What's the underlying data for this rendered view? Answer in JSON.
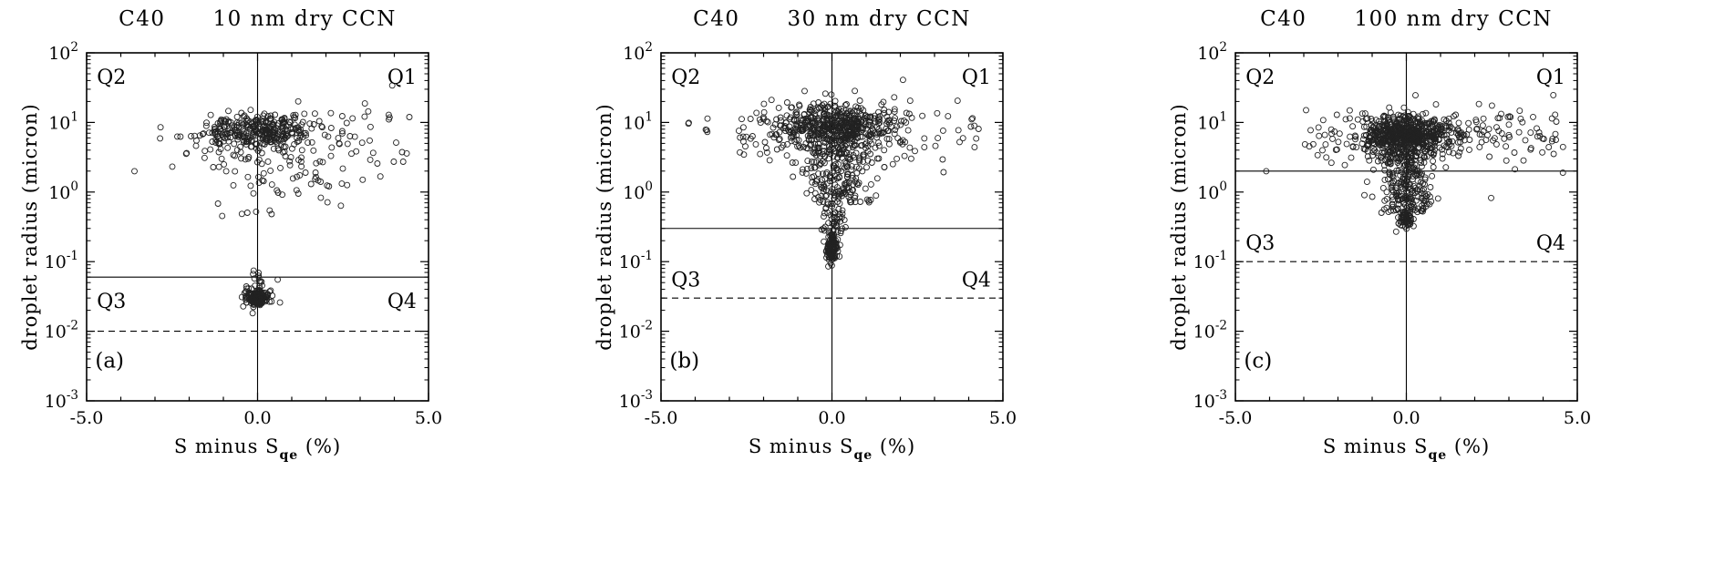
{
  "figure": {
    "panels": [
      {
        "title_prefix": "C40",
        "title_main": "10 nm dry CCN",
        "ylabel": "droplet radius (micron)",
        "xlabel_pre": "S minus S",
        "xlabel_sub": "qe",
        "xlabel_post": " (%)"
      },
      {
        "title_prefix": "C40",
        "title_main": "30 nm dry CCN",
        "ylabel": "droplet radius (micron)",
        "xlabel_pre": "S minus S",
        "xlabel_sub": "qe",
        "xlabel_post": " (%)"
      },
      {
        "title_prefix": "C40",
        "title_main": "100 nm dry CCN",
        "ylabel": "droplet radius (micron)",
        "xlabel_pre": "S minus S",
        "xlabel_sub": "qe",
        "xlabel_post": " (%)"
      }
    ]
  },
  "chart_data": [
    {
      "type": "scatter",
      "title": "C40 10 nm dry CCN",
      "xlabel": "S minus S_qe (%)",
      "ylabel": "droplet radius (micron)",
      "xlim": [
        -5,
        5
      ],
      "ylog_lim": [
        -3,
        2
      ],
      "x_major_ticks": [
        -5,
        0,
        5
      ],
      "x_tick_labels": [
        "-5.0",
        "0.0",
        "5.0"
      ],
      "y_decades": [
        2,
        1,
        0,
        -1,
        -2,
        -3
      ],
      "grid": false,
      "marker": "open-circle",
      "marker_color": "#222222",
      "vline_x": 0,
      "hline_solid_y": 0.06,
      "hline_dashed_y": 0.01,
      "quadrant_labels": [
        {
          "text": "Q2",
          "x": -4.7,
          "logy": 1.66,
          "anchor": "start"
        },
        {
          "text": "Q1",
          "x": 4.65,
          "logy": 1.66,
          "anchor": "end"
        },
        {
          "text": "Q3",
          "x": -4.7,
          "logy": -1.56,
          "anchor": "start"
        },
        {
          "text": "Q4",
          "x": 4.65,
          "logy": -1.56,
          "anchor": "end"
        }
      ],
      "panel_label": {
        "text": "(a)",
        "x": -4.75,
        "logy": -2.42
      },
      "seed": 101,
      "clusters": [
        {
          "n": 320,
          "x": {
            "dist": "normal",
            "mean": 0.05,
            "sd": 0.75
          },
          "logy": {
            "dist": "normal",
            "mean": 0.88,
            "sd": 0.13
          }
        },
        {
          "n": 90,
          "x": {
            "dist": "uniform",
            "min": -1.6,
            "max": 4.6
          },
          "logy": {
            "dist": "normal",
            "mean": 0.72,
            "sd": 0.26
          }
        },
        {
          "n": 48,
          "x": {
            "dist": "normal",
            "mean": 0.6,
            "sd": 1.0
          },
          "logy": {
            "dist": "uniform",
            "min": -0.35,
            "max": 0.55
          }
        },
        {
          "n": 8,
          "x": {
            "dist": "uniform",
            "min": -3.0,
            "max": -1.6
          },
          "logy": {
            "dist": "uniform",
            "min": 0.3,
            "max": 1.0
          }
        },
        {
          "n": 1,
          "x": {
            "dist": "const",
            "value": -3.6
          },
          "logy": {
            "dist": "const",
            "value": 0.3
          }
        },
        {
          "n": 160,
          "x": {
            "dist": "normal",
            "mean": 0.0,
            "sd": 0.13
          },
          "logy": {
            "dist": "normal",
            "mean": -1.52,
            "sd": 0.05
          }
        },
        {
          "n": 30,
          "x": {
            "dist": "normal",
            "mean": 0.0,
            "sd": 0.28
          },
          "logy": {
            "dist": "normal",
            "mean": -1.5,
            "sd": 0.07
          }
        },
        {
          "n": 18,
          "x": {
            "dist": "normal",
            "mean": 0.0,
            "sd": 0.18
          },
          "logy": {
            "dist": "uniform",
            "min": -1.45,
            "max": -1.12
          }
        }
      ]
    },
    {
      "type": "scatter",
      "title": "C40 30 nm dry CCN",
      "xlabel": "S minus S_qe (%)",
      "ylabel": "droplet radius (micron)",
      "xlim": [
        -5,
        5
      ],
      "ylog_lim": [
        -3,
        2
      ],
      "x_major_ticks": [
        -5,
        0,
        5
      ],
      "x_tick_labels": [
        "-5.0",
        "0.0",
        "5.0"
      ],
      "y_decades": [
        2,
        1,
        0,
        -1,
        -2,
        -3
      ],
      "grid": false,
      "marker": "open-circle",
      "marker_color": "#222222",
      "vline_x": 0,
      "hline_solid_y": 0.3,
      "hline_dashed_y": 0.03,
      "quadrant_labels": [
        {
          "text": "Q2",
          "x": -4.7,
          "logy": 1.66,
          "anchor": "start"
        },
        {
          "text": "Q1",
          "x": 4.65,
          "logy": 1.66,
          "anchor": "end"
        },
        {
          "text": "Q3",
          "x": -4.7,
          "logy": -1.25,
          "anchor": "start"
        },
        {
          "text": "Q4",
          "x": 4.65,
          "logy": -1.25,
          "anchor": "end"
        }
      ],
      "panel_label": {
        "text": "(b)",
        "x": -4.75,
        "logy": -2.42
      },
      "seed": 202,
      "clusters": [
        {
          "n": 480,
          "x": {
            "dist": "normal",
            "mean": 0.1,
            "sd": 0.8
          },
          "logy": {
            "dist": "normal",
            "mean": 0.95,
            "sd": 0.15
          }
        },
        {
          "n": 150,
          "x": {
            "dist": "uniform",
            "min": -2.8,
            "max": 3.4
          },
          "logy": {
            "dist": "normal",
            "mean": 0.85,
            "sd": 0.28
          }
        },
        {
          "n": 12,
          "x": {
            "dist": "uniform",
            "min": 3.0,
            "max": 4.4
          },
          "logy": {
            "dist": "normal",
            "mean": 0.9,
            "sd": 0.2
          }
        },
        {
          "n": 6,
          "x": {
            "dist": "uniform",
            "min": -4.3,
            "max": -3.4
          },
          "logy": {
            "dist": "normal",
            "mean": 1.0,
            "sd": 0.06
          }
        },
        {
          "n": 190,
          "x": {
            "dist": "normal",
            "mean": 0.1,
            "sd": 0.5
          },
          "logy": {
            "dist": "uniform",
            "min": -0.15,
            "max": 0.65
          }
        },
        {
          "n": 50,
          "x": {
            "dist": "normal",
            "mean": 0.05,
            "sd": 0.18
          },
          "logy": {
            "dist": "uniform",
            "min": -0.62,
            "max": -0.15
          }
        },
        {
          "n": 115,
          "x": {
            "dist": "normal",
            "mean": 0.0,
            "sd": 0.09
          },
          "logy": {
            "dist": "normal",
            "mean": -0.82,
            "sd": 0.09
          }
        }
      ]
    },
    {
      "type": "scatter",
      "title": "C40 100 nm dry CCN",
      "xlabel": "S minus S_qe (%)",
      "ylabel": "droplet radius (micron)",
      "xlim": [
        -5,
        5
      ],
      "ylog_lim": [
        -3,
        2
      ],
      "x_major_ticks": [
        -5,
        0,
        5
      ],
      "x_tick_labels": [
        "-5.0",
        "0.0",
        "5.0"
      ],
      "y_decades": [
        2,
        1,
        0,
        -1,
        -2,
        -3
      ],
      "grid": false,
      "marker": "open-circle",
      "marker_color": "#222222",
      "vline_x": 0,
      "hline_solid_y": 2.0,
      "hline_dashed_y": 0.1,
      "quadrant_labels": [
        {
          "text": "Q2",
          "x": -4.7,
          "logy": 1.66,
          "anchor": "start"
        },
        {
          "text": "Q1",
          "x": 4.65,
          "logy": 1.66,
          "anchor": "end"
        },
        {
          "text": "Q3",
          "x": -4.7,
          "logy": -0.72,
          "anchor": "start"
        },
        {
          "text": "Q4",
          "x": 4.65,
          "logy": -0.72,
          "anchor": "end"
        }
      ],
      "panel_label": {
        "text": "(c)",
        "x": -4.75,
        "logy": -2.42
      },
      "seed": 303,
      "clusters": [
        {
          "n": 600,
          "x": {
            "dist": "normal",
            "mean": 0.05,
            "sd": 0.65
          },
          "logy": {
            "dist": "normal",
            "mean": 0.82,
            "sd": 0.13
          }
        },
        {
          "n": 160,
          "x": {
            "dist": "uniform",
            "min": -3.0,
            "max": 4.6
          },
          "logy": {
            "dist": "normal",
            "mean": 0.8,
            "sd": 0.22
          }
        },
        {
          "n": 260,
          "x": {
            "dist": "normal",
            "mean": 0.0,
            "sd": 0.4
          },
          "logy": {
            "dist": "uniform",
            "min": -0.3,
            "max": 0.6
          }
        },
        {
          "n": 55,
          "x": {
            "dist": "normal",
            "mean": 0.0,
            "sd": 0.12
          },
          "logy": {
            "dist": "normal",
            "mean": -0.42,
            "sd": 0.06
          }
        },
        {
          "n": 1,
          "x": {
            "dist": "const",
            "value": -4.1
          },
          "logy": {
            "dist": "const",
            "value": 0.3
          }
        }
      ]
    }
  ]
}
